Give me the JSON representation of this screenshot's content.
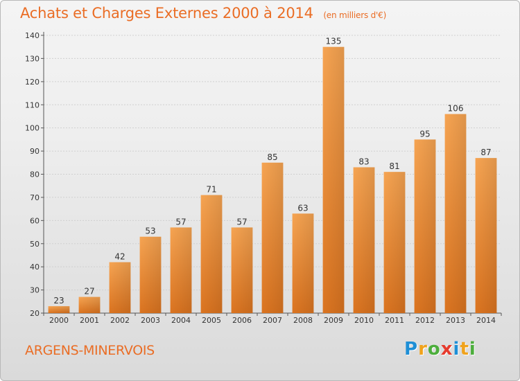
{
  "header": {
    "title": "Achats et Charges Externes 2000 à 2014",
    "subtitle": "(en milliers d'€)"
  },
  "footer": {
    "commune": "ARGENS-MINERVOIS",
    "logo_letters": [
      "P",
      "r",
      "o",
      "x",
      "i",
      "t",
      "i"
    ],
    "logo_colors": [
      "#1e8fd6",
      "#f0a21c",
      "#4cae3c",
      "#e63b2e",
      "#1e8fd6",
      "#f0a21c",
      "#4cae3c"
    ]
  },
  "chart_data": {
    "type": "bar",
    "title": "Achats et Charges Externes 2000 à 2014",
    "subtitle": "(en milliers d'€)",
    "categories": [
      "2000",
      "2001",
      "2002",
      "2003",
      "2004",
      "2005",
      "2006",
      "2007",
      "2008",
      "2009",
      "2010",
      "2011",
      "2012",
      "2013",
      "2014"
    ],
    "values": [
      23,
      27,
      42,
      53,
      57,
      71,
      57,
      85,
      63,
      135,
      83,
      81,
      95,
      106,
      87
    ],
    "ylim": [
      20,
      140
    ],
    "yticks": [
      20,
      30,
      40,
      50,
      60,
      70,
      80,
      90,
      100,
      110,
      120,
      130,
      140
    ],
    "grid": true,
    "bar_color_top": "#f6a452",
    "bar_color_bottom": "#db7420",
    "xlabel": "",
    "ylabel": ""
  }
}
